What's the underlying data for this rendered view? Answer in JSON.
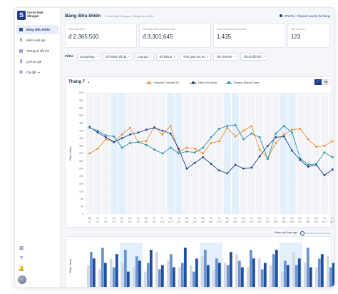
{
  "app": {
    "name_line1": "Cirrus Rate",
    "name_line2": "Shopper",
    "logo_letter": "S"
  },
  "sidebar": {
    "items": [
      {
        "label": "Bảng điều khiển",
        "icon": "grid-icon",
        "glyph": "▦"
      },
      {
        "label": "Kiểm soát giá",
        "icon": "dollar-icon",
        "glyph": "$"
      },
      {
        "label": "Thông tin đối thủ",
        "icon": "calendar-icon",
        "glyph": "▤"
      },
      {
        "label": "Lịch sử giá",
        "icon": "dollar-icon",
        "glyph": "$"
      },
      {
        "label": "Cài đặt",
        "icon": "gear-icon",
        "glyph": "⚙"
      }
    ]
  },
  "header": {
    "title": "Bảng điều khiển",
    "breadcrumb": "Cirrus Rate Shopper  /  Bảng điều khiển",
    "hotel": "VPLON - Vinpearl Luxury Da Nang"
  },
  "stats": [
    {
      "label": "Giá trung bình",
      "value": "đ 2,365,500"
    },
    {
      "label": "Giá thấp nhất của khách sạn",
      "value": "đ 3,301,645"
    },
    {
      "label": "Giá trung bình của đối thủ",
      "value": "1,435"
    },
    {
      "label": "Giá vị chênh",
      "value": "123"
    }
  ],
  "filters": {
    "label": "Filter",
    "items": [
      "Loại phòng",
      "Số khách tối đa",
      "Loại giá",
      "Số khách",
      "Thời gian lưu trú",
      "Tất cả kênh",
      "Tất cả đối thủ"
    ]
  },
  "chart": {
    "month": "Tháng 7",
    "toggle_line": "⟋",
    "toggle_bar": "▮▮"
  },
  "chart_data": {
    "type": "line",
    "ylabel": "Rate Value",
    "ylim": [
      0,
      640
    ],
    "yticks": [
      0,
      40,
      80,
      120,
      160,
      200,
      240,
      280,
      320,
      360,
      400,
      440,
      480,
      520,
      560,
      600,
      640
    ],
    "categories": [
      [
        "We",
        "1/7"
      ],
      [
        "Th",
        "2/7"
      ],
      [
        "Fr",
        "3/7"
      ],
      [
        "Sa",
        "4/7"
      ],
      [
        "Su",
        "5/7"
      ],
      [
        "Mo",
        "6/7"
      ],
      [
        "Tu",
        "7/7"
      ],
      [
        "We",
        "8/7"
      ],
      [
        "Th",
        "9/7"
      ],
      [
        "Fr",
        "10/7"
      ],
      [
        "Sa",
        "11/7"
      ],
      [
        "Su",
        "12/7"
      ],
      [
        "Mo",
        "13/7"
      ],
      [
        "Tu",
        "14/7"
      ],
      [
        "We",
        "15/7"
      ],
      [
        "Th",
        "16/7"
      ],
      [
        "Fr",
        "17/7"
      ],
      [
        "Sa",
        "18/7"
      ],
      [
        "Su",
        "19/7"
      ],
      [
        "Mo",
        "20/7"
      ],
      [
        "Tu",
        "21/7"
      ],
      [
        "We",
        "22/7"
      ],
      [
        "Th",
        "23/7"
      ],
      [
        "Fr",
        "24/7"
      ],
      [
        "Sa",
        "25/7"
      ],
      [
        "Su",
        "26/7"
      ],
      [
        "Mo",
        "27/7"
      ],
      [
        "Tu",
        "28/7"
      ],
      [
        "We",
        "29/7"
      ],
      [
        "Th",
        "30/7"
      ],
      [
        "Fr",
        "31/7"
      ]
    ],
    "weekend_indexes": [
      3,
      4,
      10,
      11,
      17,
      18,
      24,
      25
    ],
    "series": [
      {
        "name": "Vinpearl Condotel Ri...",
        "color": "#f28e2b",
        "values": [
          320,
          345,
          395,
          380,
          420,
          455,
          380,
          385,
          460,
          420,
          465,
          330,
          350,
          345,
          320,
          375,
          385,
          455,
          410,
          440,
          465,
          340,
          295,
          375,
          420,
          445,
          450,
          395,
          355,
          360,
          385
        ]
      },
      {
        "name": "Hilton Da Nang",
        "color": "#1f3f8f",
        "values": [
          460,
          430,
          405,
          380,
          400,
          420,
          430,
          445,
          455,
          440,
          425,
          345,
          240,
          270,
          300,
          265,
          230,
          215,
          260,
          240,
          245,
          305,
          360,
          405,
          410,
          335,
          285,
          250,
          260,
          205,
          235
        ]
      },
      {
        "name": "Furama Resort Dana...",
        "color": "#2a8fa8",
        "values": [
          455,
          440,
          415,
          410,
          350,
          375,
          380,
          365,
          340,
          320,
          350,
          320,
          330,
          325,
          350,
          405,
          450,
          465,
          470,
          395,
          425,
          405,
          290,
          425,
          465,
          430,
          295,
          260,
          265,
          325,
          300
        ]
      }
    ]
  },
  "bottom_chart": {
    "ylabel": "Rate Value",
    "range_label": "Today vs 8 days ago",
    "slider_fraction": 0,
    "bars": [
      [
        0.55,
        0.85,
        0.7
      ],
      [
        0.45,
        0.95,
        0.6
      ],
      [
        0.7,
        0.5,
        0.8
      ],
      [
        0.6,
        0.9,
        0.4
      ],
      [
        0.5,
        0.75,
        0.65
      ],
      [
        0.4,
        0.6,
        0.9
      ],
      [
        0.85,
        0.45,
        0.55
      ],
      [
        0.65,
        0.8,
        0.5
      ],
      [
        0.5,
        0.6,
        0.95
      ],
      [
        0.55,
        0.4,
        0.7
      ],
      [
        0.75,
        0.9,
        0.55
      ],
      [
        0.45,
        0.7,
        0.6
      ],
      [
        0.6,
        0.55,
        0.85
      ],
      [
        0.8,
        0.65,
        0.5
      ],
      [
        0.5,
        0.9,
        0.7
      ],
      [
        0.7,
        0.45,
        0.6
      ],
      [
        0.55,
        0.8,
        0.9
      ],
      [
        0.4,
        0.65,
        0.55
      ],
      [
        0.85,
        0.55,
        0.7
      ],
      [
        0.6,
        0.95,
        0.5
      ],
      [
        0.5,
        0.7,
        0.8
      ],
      [
        0.75,
        0.5,
        0.6
      ]
    ]
  }
}
